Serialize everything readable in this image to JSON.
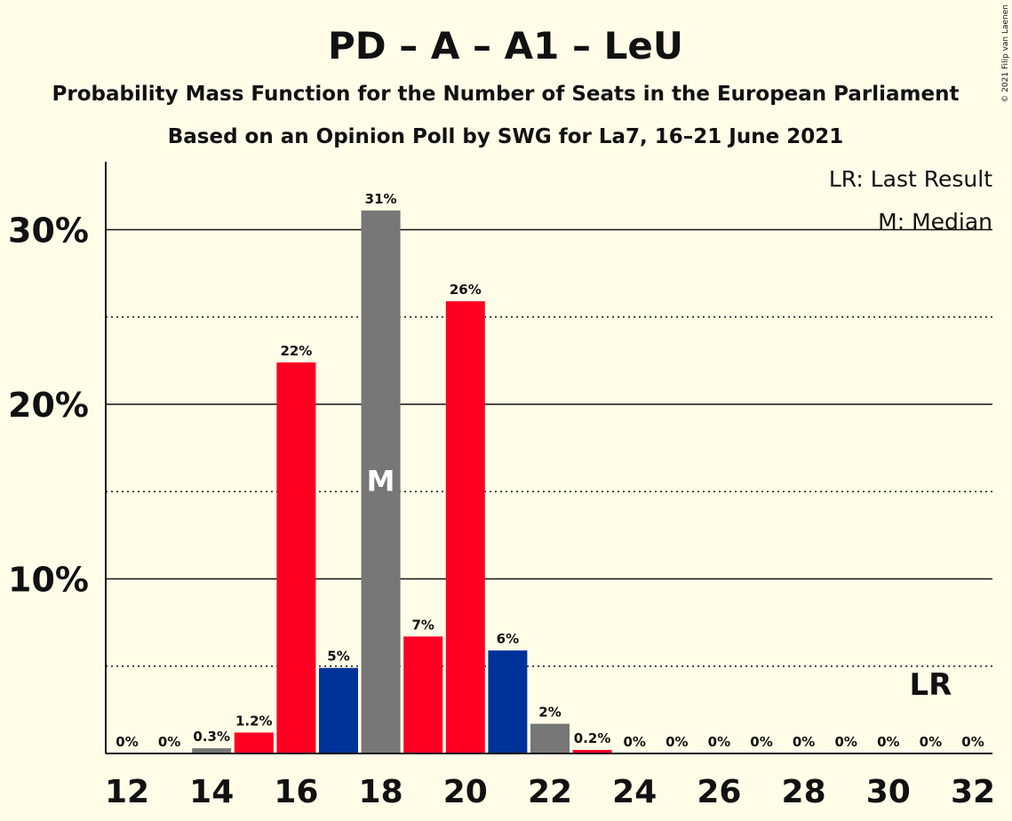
{
  "chart_data": {
    "type": "bar",
    "title": "PD – A – A1 – LeU",
    "subtitle1": "Probability Mass Function for the Number of Seats in the European Parliament",
    "subtitle2": "Based on an Opinion Poll by SWG for La7, 16–21 June 2021",
    "credit": "© 2021 Filip van Laenen",
    "legend": {
      "lr": "LR: Last Result",
      "m": "M: Median"
    },
    "ylim": [
      0,
      34
    ],
    "yticks": [
      {
        "value": 10,
        "label": "10%"
      },
      {
        "value": 20,
        "label": "20%"
      },
      {
        "value": 30,
        "label": "30%"
      }
    ],
    "dotted_lines": [
      5,
      15,
      25
    ],
    "xtick_labels": [
      "12",
      "14",
      "16",
      "18",
      "20",
      "22",
      "24",
      "26",
      "28",
      "30",
      "32"
    ],
    "median_seat": 18,
    "median_marker": "M",
    "last_result_seat": 31,
    "last_result_marker": "LR",
    "colors": {
      "red": "#FF0022",
      "blue": "#003399",
      "gray": "#777777",
      "background": "#FFFDE8"
    },
    "bars": [
      {
        "seats": 12,
        "value": 0,
        "label": "0%",
        "color": "gray"
      },
      {
        "seats": 13,
        "value": 0,
        "label": "0%",
        "color": "gray"
      },
      {
        "seats": 14,
        "value": 0.3,
        "label": "0.3%",
        "color": "gray"
      },
      {
        "seats": 15,
        "value": 1.2,
        "label": "1.2%",
        "color": "red"
      },
      {
        "seats": 16,
        "value": 22.4,
        "label": "22%",
        "color": "red"
      },
      {
        "seats": 17,
        "value": 4.9,
        "label": "5%",
        "color": "blue"
      },
      {
        "seats": 18,
        "value": 31.1,
        "label": "31%",
        "color": "gray"
      },
      {
        "seats": 19,
        "value": 6.7,
        "label": "7%",
        "color": "red"
      },
      {
        "seats": 20,
        "value": 25.9,
        "label": "26%",
        "color": "red"
      },
      {
        "seats": 21,
        "value": 5.9,
        "label": "6%",
        "color": "blue"
      },
      {
        "seats": 22,
        "value": 1.7,
        "label": "2%",
        "color": "gray"
      },
      {
        "seats": 23,
        "value": 0.2,
        "label": "0.2%",
        "color": "red"
      },
      {
        "seats": 24,
        "value": 0,
        "label": "0%",
        "color": "gray"
      },
      {
        "seats": 25,
        "value": 0,
        "label": "0%",
        "color": "gray"
      },
      {
        "seats": 26,
        "value": 0,
        "label": "0%",
        "color": "gray"
      },
      {
        "seats": 27,
        "value": 0,
        "label": "0%",
        "color": "gray"
      },
      {
        "seats": 28,
        "value": 0,
        "label": "0%",
        "color": "gray"
      },
      {
        "seats": 29,
        "value": 0,
        "label": "0%",
        "color": "gray"
      },
      {
        "seats": 30,
        "value": 0,
        "label": "0%",
        "color": "gray"
      },
      {
        "seats": 31,
        "value": 0,
        "label": "0%",
        "color": "gray"
      },
      {
        "seats": 32,
        "value": 0,
        "label": "0%",
        "color": "gray"
      }
    ]
  }
}
